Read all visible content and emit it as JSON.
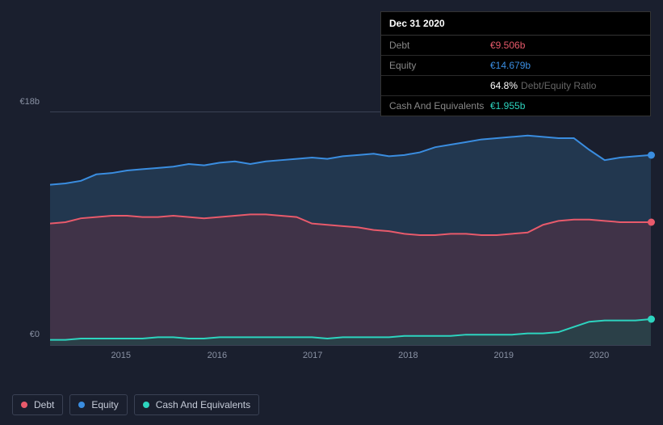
{
  "tooltip": {
    "date": "Dec 31 2020",
    "rows": [
      {
        "label": "Debt",
        "value": "€9.506b",
        "color": "#e85a6b"
      },
      {
        "label": "Equity",
        "value": "€14.679b",
        "color": "#3a8de0"
      },
      {
        "label": "",
        "value": "64.8%",
        "sublabel": "Debt/Equity Ratio",
        "color": "#ffffff"
      },
      {
        "label": "Cash And Equivalents",
        "value": "€1.955b",
        "color": "#2dd4bf"
      }
    ]
  },
  "chart": {
    "type": "area",
    "background_color": "#1a1f2e",
    "grid_color": "#3a4154",
    "ylim": [
      0,
      18
    ],
    "y_ticks": [
      {
        "value": 0,
        "label": "€0"
      },
      {
        "value": 18,
        "label": "€18b"
      }
    ],
    "x_ticks": [
      "2015",
      "2016",
      "2017",
      "2018",
      "2019",
      "2020"
    ],
    "x_tick_positions_pct": [
      11.8,
      27.8,
      43.7,
      59.6,
      75.5,
      91.4
    ],
    "series": {
      "equity": {
        "color": "#3a8de0",
        "fill": "#2a4a6b",
        "fill_opacity": 0.55,
        "values": [
          12.4,
          12.5,
          12.7,
          13.2,
          13.3,
          13.5,
          13.6,
          13.7,
          13.8,
          14.0,
          13.9,
          14.1,
          14.2,
          14.0,
          14.2,
          14.3,
          14.4,
          14.5,
          14.4,
          14.6,
          14.7,
          14.8,
          14.6,
          14.7,
          14.9,
          15.3,
          15.5,
          15.7,
          15.9,
          16.0,
          16.1,
          16.2,
          16.1,
          16.0,
          16.0,
          15.1,
          14.3,
          14.5,
          14.6,
          14.7
        ]
      },
      "debt": {
        "color": "#e85a6b",
        "fill": "#5a3244",
        "fill_opacity": 0.55,
        "values": [
          9.4,
          9.5,
          9.8,
          9.9,
          10.0,
          10.0,
          9.9,
          9.9,
          10.0,
          9.9,
          9.8,
          9.9,
          10.0,
          10.1,
          10.1,
          10.0,
          9.9,
          9.4,
          9.3,
          9.2,
          9.1,
          8.9,
          8.8,
          8.6,
          8.5,
          8.5,
          8.6,
          8.6,
          8.5,
          8.5,
          8.6,
          8.7,
          9.3,
          9.6,
          9.7,
          9.7,
          9.6,
          9.5,
          9.5,
          9.5
        ]
      },
      "cash": {
        "color": "#2dd4bf",
        "fill": "#1a4a48",
        "fill_opacity": 0.55,
        "values": [
          0.4,
          0.4,
          0.5,
          0.5,
          0.5,
          0.5,
          0.5,
          0.6,
          0.6,
          0.5,
          0.5,
          0.6,
          0.6,
          0.6,
          0.6,
          0.6,
          0.6,
          0.6,
          0.5,
          0.6,
          0.6,
          0.6,
          0.6,
          0.7,
          0.7,
          0.7,
          0.7,
          0.8,
          0.8,
          0.8,
          0.8,
          0.9,
          0.9,
          1.0,
          1.4,
          1.8,
          1.9,
          1.9,
          1.9,
          2.0
        ]
      }
    },
    "endpoint_dots": [
      {
        "series": "equity",
        "color": "#3a8de0"
      },
      {
        "series": "debt",
        "color": "#e85a6b"
      },
      {
        "series": "cash",
        "color": "#2dd4bf"
      }
    ]
  },
  "legend": [
    {
      "label": "Debt",
      "color": "#e85a6b"
    },
    {
      "label": "Equity",
      "color": "#3a8de0"
    },
    {
      "label": "Cash And Equivalents",
      "color": "#2dd4bf"
    }
  ]
}
